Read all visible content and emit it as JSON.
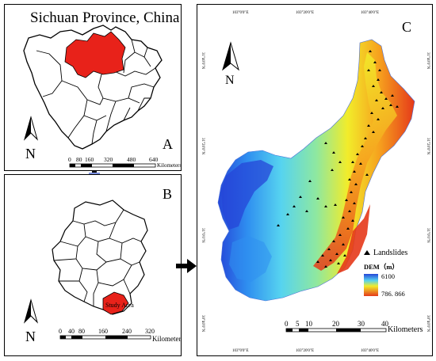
{
  "panel_a": {
    "title": "Sichuan Province, China",
    "letter": "A",
    "north": "N",
    "scale_ticks": [
      "0",
      "80",
      "160",
      "320",
      "480",
      "640"
    ],
    "scale_unit": "Kilometers"
  },
  "panel_b": {
    "letter": "B",
    "north": "N",
    "study_area_label": "Study Area",
    "scale_ticks": [
      "0",
      "40",
      "80",
      "160",
      "240",
      "320"
    ],
    "scale_unit": "Kilometers"
  },
  "panel_c": {
    "letter": "C",
    "north": "N",
    "top_ticks": [
      "103°0'0\"E",
      "103°20'0\"E",
      "103°40'0\"E"
    ],
    "bottom_ticks": [
      "103°0'0\"E",
      "103°20'0\"E",
      "103°40'0\"E"
    ],
    "left_ticks": [
      "31°40'0\"N",
      "31°20'0\"N",
      "31°0'0\"N",
      "30°40'0\"N"
    ],
    "right_ticks": [
      "31°40'0\"N",
      "31°20'0\"N",
      "31°0'0\"N",
      "30°40'0\"N"
    ],
    "legend": {
      "landslides_label": "Landslides",
      "dem_label": "DEM（m）",
      "dem_max": "6100",
      "dem_min": "786. 866"
    },
    "scale_ticks": [
      "0",
      "5",
      "10",
      "20",
      "30",
      "40"
    ],
    "scale_unit": "Kilometers"
  },
  "colors": {
    "highlight": "#e8221a",
    "dem_low": "#d2311a",
    "dem_mid": "#f5e61e",
    "dem_high": "#1f4fd6",
    "arrow": "#000000"
  }
}
